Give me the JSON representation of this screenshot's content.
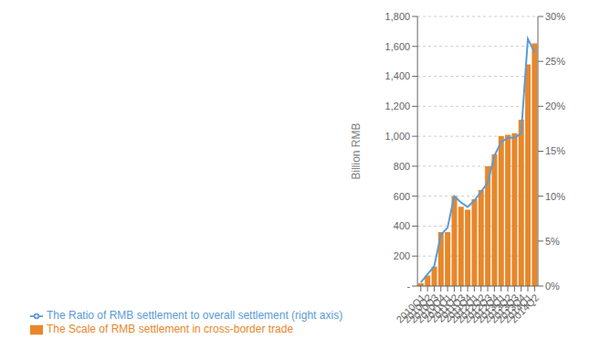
{
  "chart_data": {
    "type": "bar",
    "categories": [
      "2010Q1",
      "2010Q2",
      "2010Q3",
      "2010Q4",
      "2011Q1",
      "2011Q2",
      "2011Q3",
      "2011Q4",
      "2012Q1",
      "2012Q2",
      "2012Q3",
      "2012Q4",
      "2013Q1",
      "2013Q2",
      "2013Q3",
      "2013Q4",
      "2014Q1",
      "2014Q2"
    ],
    "series": [
      {
        "name": "The Scale of RMB settlement in cross-border trade",
        "type": "bar",
        "color": "#E8872A",
        "values": [
          18,
          70,
          130,
          360,
          360,
          600,
          530,
          510,
          580,
          640,
          800,
          880,
          1000,
          1010,
          1020,
          1110,
          1480,
          1620
        ]
      },
      {
        "name": "The Ratio of RMB settlement to overall settlement (right axis)",
        "type": "line",
        "axis": "y2",
        "color": "#5B9BD5",
        "values": [
          0.4,
          1.3,
          2.2,
          5.7,
          6.5,
          10.0,
          9.3,
          8.8,
          9.5,
          10.5,
          11.5,
          14.5,
          16.0,
          16.5,
          16.5,
          17.0,
          27.5,
          26.0
        ]
      }
    ],
    "ylabel": "Billion RMB",
    "ylim": [
      0,
      1800
    ],
    "yticks": [
      {
        "value": 0,
        "label": "-"
      },
      200,
      400,
      600,
      800,
      {
        "value": 1000,
        "label": "1,000"
      },
      {
        "value": 1200,
        "label": "1,200"
      },
      {
        "value": 1400,
        "label": "1,400"
      },
      {
        "value": 1600,
        "label": "1,600"
      },
      {
        "value": 1800,
        "label": "1,800"
      }
    ],
    "y2lim": [
      0,
      30
    ],
    "y2ticks": [
      {
        "value": 0,
        "label": "0%"
      },
      {
        "value": 5,
        "label": "5%"
      },
      {
        "value": 10,
        "label": "10%"
      },
      {
        "value": 15,
        "label": "15%"
      },
      {
        "value": 20,
        "label": "20%"
      },
      {
        "value": 25,
        "label": "25%"
      },
      {
        "value": 30,
        "label": "30%"
      }
    ],
    "grid": true,
    "legend": "lower left"
  }
}
